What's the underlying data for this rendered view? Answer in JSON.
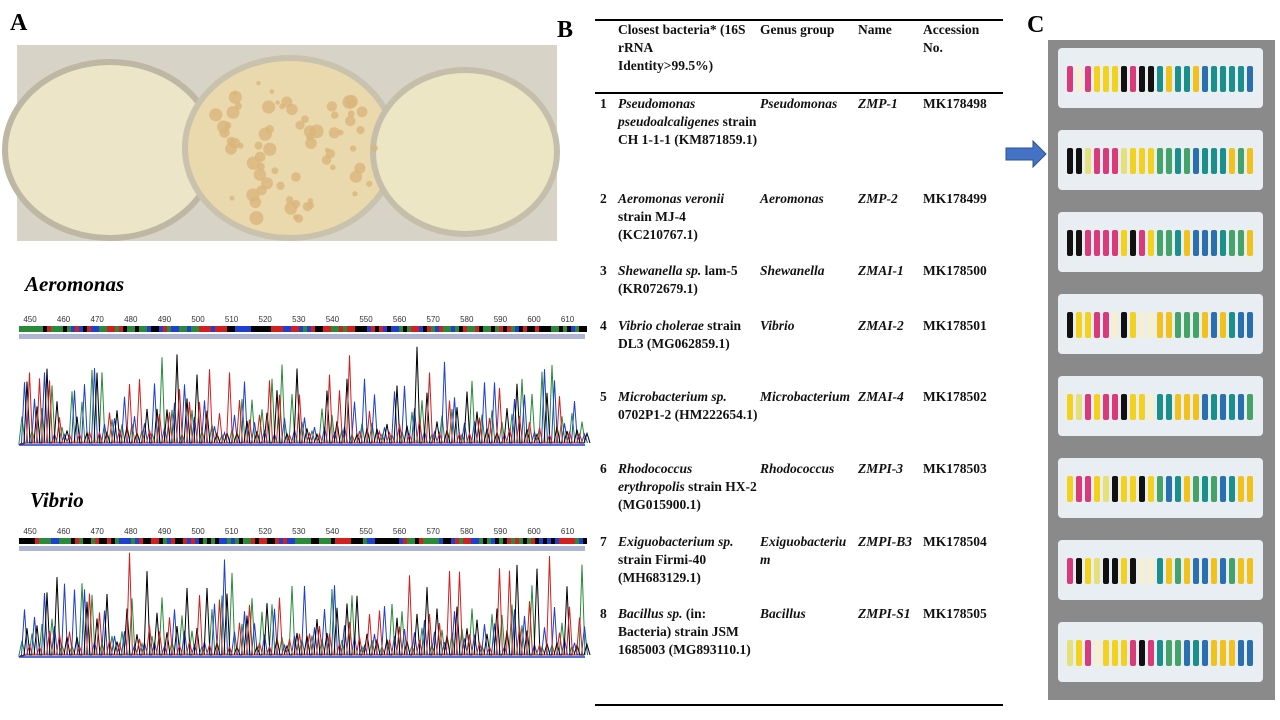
{
  "panels": {
    "a": "A",
    "b": "B",
    "c": "C"
  },
  "chromatograms": [
    {
      "title": "Aeromonas",
      "ticks": [
        450,
        460,
        470,
        480,
        490,
        500,
        510,
        520,
        530,
        540,
        550,
        560,
        570,
        580,
        590,
        600,
        610
      ]
    },
    {
      "title": "Vibrio",
      "ticks": [
        450,
        460,
        470,
        480,
        490,
        500,
        510,
        520,
        530,
        540,
        550,
        560,
        570,
        580,
        590,
        600,
        610
      ]
    }
  ],
  "table": {
    "header": [
      "Closest bacteria* (16S rRNA Identity>99.5%)",
      "Genus group",
      "Name",
      "Accession No."
    ],
    "rows": [
      {
        "no": 1,
        "species": "Pseudomonas pseudoalcaligenes",
        "strain": "strain CH 1-1-1 (KM871859.1)",
        "genus": "Pseudomonas",
        "name": "ZMP-1",
        "accession": "MK178498"
      },
      {
        "no": 2,
        "species": "Aeromonas veronii",
        "strain": "strain MJ-4 (KC210767.1)",
        "genus": "Aeromonas",
        "name": "ZMP-2",
        "accession": "MK178499"
      },
      {
        "no": 3,
        "species": "Shewanella sp.",
        "strain": "lam-5 (KR072679.1)",
        "genus": "Shewanella",
        "name": "ZMAI-1",
        "accession": "MK178500"
      },
      {
        "no": 4,
        "species": "Vibrio cholerae",
        "strain": "strain DL3 (MG062859.1)",
        "genus": "Vibrio",
        "name": "ZMAI-2",
        "accession": "MK178501"
      },
      {
        "no": 5,
        "species": "Microbacterium sp.",
        "strain": "0702P1-2 (HM222654.1)",
        "genus": "Microbacterium",
        "name": "ZMAI-4",
        "accession": "MK178502"
      },
      {
        "no": 6,
        "species": "Rhodococcus erythropolis",
        "strain": "strain HX-2 (MG015900.1)",
        "genus": "Rhodococcus",
        "name": "ZMPI-3",
        "accession": "MK178503"
      },
      {
        "no": 7,
        "species": "Exiguobacterium sp.",
        "strain": "strain Firmi-40 (MH683129.1)",
        "genus": "Exiguobacterium",
        "name": "ZMPI-B3",
        "accession": "MK178504"
      },
      {
        "no": 8,
        "species": "Bacillus sp.",
        "strain": "(in: Bacteria) strain JSM 1685003 (MG893110.1)",
        "genus": "Bacillus",
        "name": "ZMPI-S1",
        "accession": "MK178505"
      }
    ]
  }
}
